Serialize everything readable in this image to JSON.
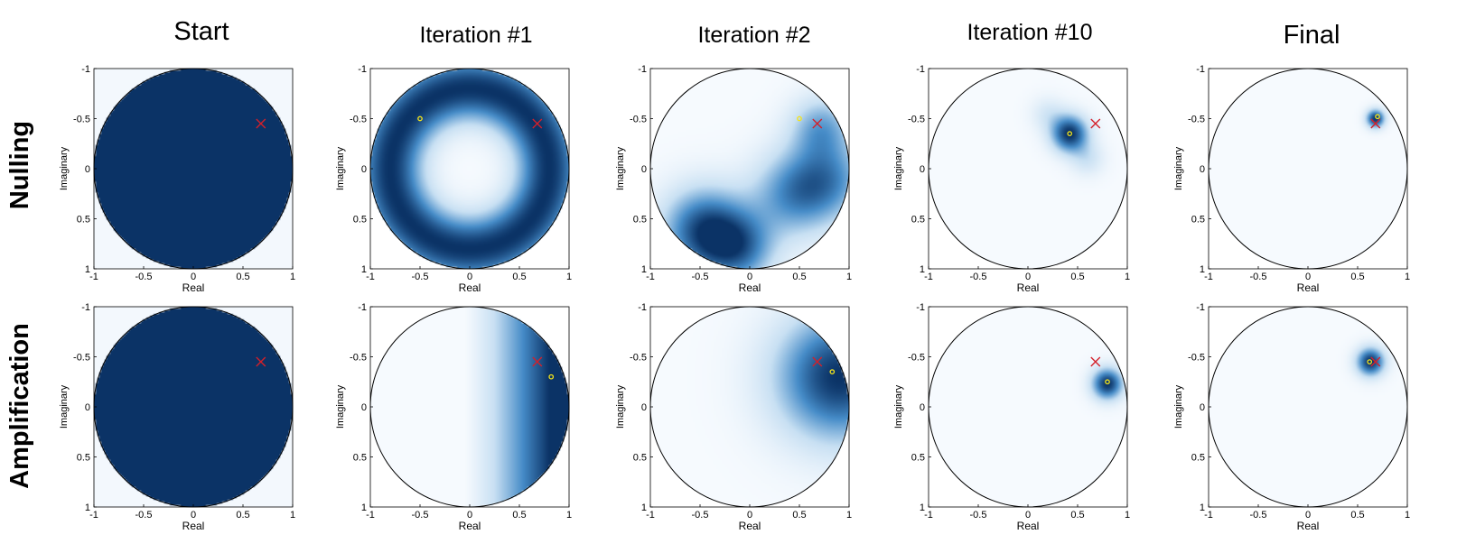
{
  "columns": [
    "Start",
    "Iteration #1",
    "Iteration #2",
    "Iteration #10",
    "Final"
  ],
  "rows": [
    "Nulling",
    "Amplification"
  ],
  "chart_data": {
    "type": "heatmap",
    "xlabel": "Real",
    "ylabel": "Imaginary",
    "xlim": [
      -1,
      1
    ],
    "ylim": [
      -1,
      1
    ],
    "y_axis_direction": "downward",
    "xticks": [
      "-1",
      "-0.5",
      "0",
      "0.5",
      "1"
    ],
    "yticks": [
      "-1",
      "-0.5",
      "0",
      "0.5",
      "1"
    ],
    "domain": "unit disk",
    "colors": {
      "high": "#0b3366",
      "low": "#f6fafe",
      "outside": "#f3f8fd",
      "target_marker": "#d4202a",
      "estimate_marker": "#f4e41a",
      "circle": "#000000"
    },
    "target": {
      "x": 0.68,
      "y": -0.45
    },
    "panels": [
      {
        "row": "Nulling",
        "column": "Start",
        "uniform": true,
        "estimate": null,
        "blobs": []
      },
      {
        "row": "Nulling",
        "column": "Iteration #1",
        "estimate": {
          "x": -0.5,
          "y": -0.5
        },
        "ring": {
          "center": [
            0,
            0
          ],
          "radius": 0.8,
          "width": 0.42
        }
      },
      {
        "row": "Nulling",
        "column": "Iteration #2",
        "estimate": {
          "x": 0.5,
          "y": -0.5
        },
        "blobs": [
          {
            "x": 0.72,
            "y": -0.42,
            "w": 0.5,
            "s": 0.22
          },
          {
            "x": 0.45,
            "y": 0.25,
            "w": 0.6,
            "s": 0.3
          },
          {
            "x": -0.45,
            "y": 0.62,
            "w": 0.9,
            "s": 0.3
          },
          {
            "x": -0.1,
            "y": 0.8,
            "w": 0.6,
            "s": 0.25
          },
          {
            "x": 0.82,
            "y": 0.1,
            "w": 0.5,
            "s": 0.28
          }
        ]
      },
      {
        "row": "Nulling",
        "column": "Iteration #10",
        "estimate": {
          "x": 0.42,
          "y": -0.35
        },
        "blobs": [
          {
            "x": 0.42,
            "y": -0.35,
            "w": 1.0,
            "s": 0.13
          },
          {
            "x": 0.6,
            "y": -0.1,
            "w": 0.25,
            "s": 0.12
          },
          {
            "x": 0.2,
            "y": -0.55,
            "w": 0.2,
            "s": 0.12
          }
        ]
      },
      {
        "row": "Nulling",
        "column": "Final",
        "estimate": {
          "x": 0.7,
          "y": -0.52
        },
        "blobs": [
          {
            "x": 0.68,
            "y": -0.5,
            "w": 1.0,
            "s": 0.065
          }
        ]
      },
      {
        "row": "Amplification",
        "column": "Start",
        "uniform": true,
        "estimate": null,
        "blobs": []
      },
      {
        "row": "Amplification",
        "column": "Iteration #1",
        "estimate": {
          "x": 0.82,
          "y": -0.3
        },
        "gradient": {
          "axis": "x",
          "from": -0.05,
          "to": 0.8
        }
      },
      {
        "row": "Amplification",
        "column": "Iteration #2",
        "estimate": {
          "x": 0.83,
          "y": -0.35
        },
        "blobs": [
          {
            "x": 0.9,
            "y": -0.3,
            "w": 1.0,
            "s": 0.45
          }
        ]
      },
      {
        "row": "Amplification",
        "column": "Iteration #10",
        "estimate": {
          "x": 0.8,
          "y": -0.25
        },
        "blobs": [
          {
            "x": 0.8,
            "y": -0.23,
            "w": 1.0,
            "s": 0.11
          }
        ]
      },
      {
        "row": "Amplification",
        "column": "Final",
        "estimate": {
          "x": 0.62,
          "y": -0.45
        },
        "blobs": [
          {
            "x": 0.63,
            "y": -0.45,
            "w": 1.0,
            "s": 0.1
          }
        ]
      }
    ]
  }
}
